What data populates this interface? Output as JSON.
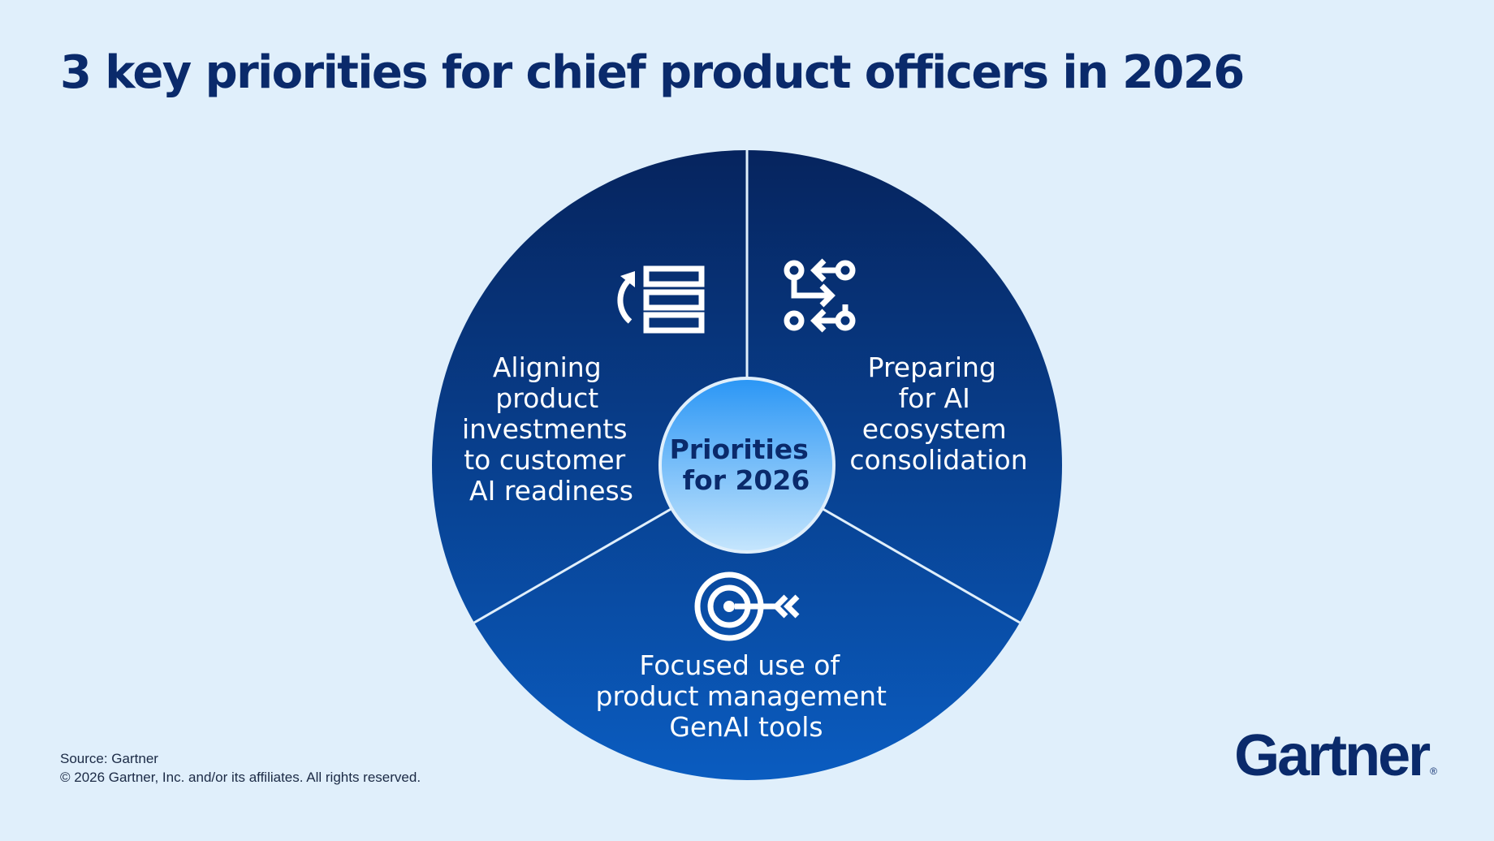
{
  "title": "3 key priorities for chief product officers in 2026",
  "hub": {
    "lines": [
      "Priorities",
      "for 2026"
    ]
  },
  "segments": [
    {
      "icon": "list-refresh-icon",
      "lines": [
        "Aligning",
        "product",
        "investments",
        "to customer",
        "AI readiness"
      ]
    },
    {
      "icon": "flow-arrows-icon",
      "lines": [
        "Preparing",
        "for AI",
        "ecosystem",
        "consolidation"
      ]
    },
    {
      "icon": "target-arrow-icon",
      "lines": [
        "Focused use of",
        "product management",
        "GenAI tools"
      ]
    }
  ],
  "footer": {
    "source": "Source: Gartner",
    "copyright": "© 2026 Gartner, Inc. and/or its affiliates. All rights reserved."
  },
  "logo": {
    "text": "Gartner",
    "mark": "®"
  },
  "colors": {
    "background": "#e0effb",
    "title": "#0a2a6b",
    "wheel_top": "#06245e",
    "wheel_bottom": "#0a5cc0",
    "hub_top": "#2a96f5",
    "hub_bottom": "#c6e6fd"
  }
}
